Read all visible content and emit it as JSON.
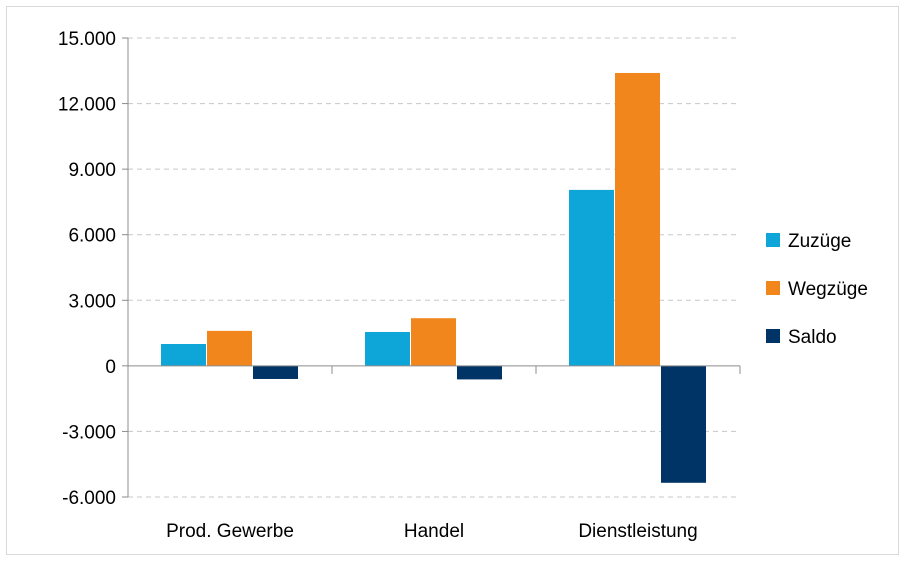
{
  "chart_data": {
    "type": "bar",
    "categories": [
      "Prod. Gewerbe",
      "Handel",
      "Dienstleistung"
    ],
    "series": [
      {
        "name": "Zuzüge",
        "values": [
          1000,
          1550,
          8050
        ],
        "color": "#0ea5d8"
      },
      {
        "name": "Wegzüge",
        "values": [
          1600,
          2180,
          13400
        ],
        "color": "#f0861c"
      },
      {
        "name": "Saldo",
        "values": [
          -600,
          -620,
          -5350
        ],
        "color": "#003366"
      }
    ],
    "ylim": [
      -6000,
      15000
    ],
    "yticks": [
      -6000,
      -3000,
      0,
      3000,
      6000,
      9000,
      12000,
      15000
    ],
    "ytick_labels": [
      "-6.000",
      "-3.000",
      "0",
      "3.000",
      "6.000",
      "9.000",
      "12.000",
      "15.000"
    ],
    "grid": true,
    "grid_style": "dashed",
    "legend_position": "right",
    "title": "",
    "xlabel": "",
    "ylabel": ""
  }
}
